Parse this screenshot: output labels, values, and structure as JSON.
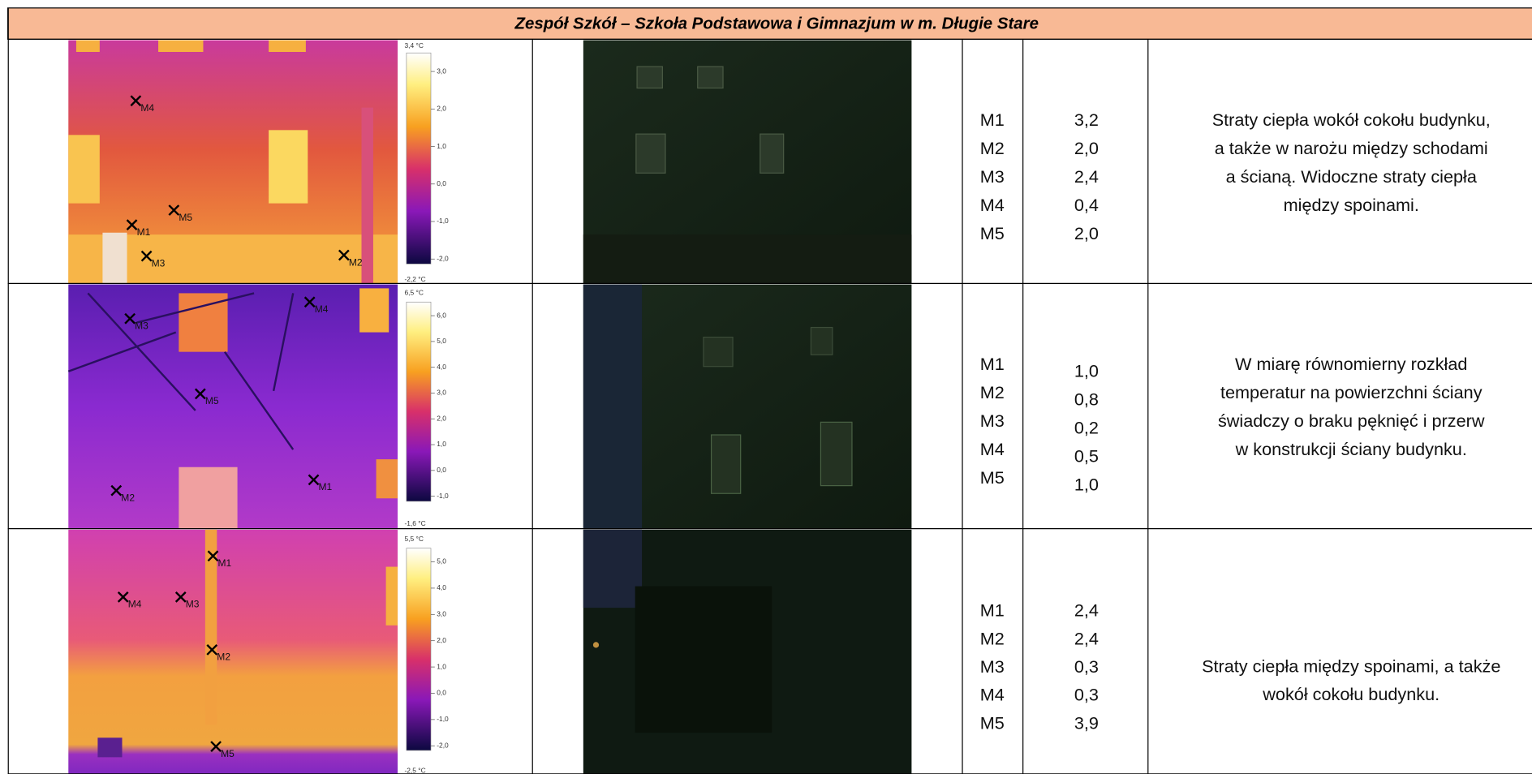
{
  "title": "Zespół Szkół – Szkoła Podstawowa i Gimnazjum w m. Długie Stare",
  "rows": [
    {
      "scale": {
        "max": "3,4 °C",
        "min": "-2,2 °C",
        "ticks": [
          "3,0",
          "2,0",
          "1,0",
          "0,0",
          "-1,0",
          "-2,0"
        ]
      },
      "points": [
        {
          "label": "M1",
          "value": "3,2"
        },
        {
          "label": "M2",
          "value": "2,0"
        },
        {
          "label": "M3",
          "value": "2,4"
        },
        {
          "label": "M4",
          "value": "0,4"
        },
        {
          "label": "M5",
          "value": "2,0"
        }
      ],
      "description": [
        "Straty ciepła wokół cokołu budynku,",
        "a także w narożu między schodami",
        "a ścianą. Widoczne straty ciepła",
        "między spoinami."
      ]
    },
    {
      "scale": {
        "max": "6,5 °C",
        "min": "-1,6 °C",
        "ticks": [
          "6,0",
          "5,0",
          "4,0",
          "3,0",
          "2,0",
          "1,0",
          "0,0",
          "-1,0"
        ]
      },
      "points": [
        {
          "label": "M1",
          "value": "1,0"
        },
        {
          "label": "M2",
          "value": "0,8"
        },
        {
          "label": "M3",
          "value": "0,2"
        },
        {
          "label": "M4",
          "value": "0,5"
        },
        {
          "label": "M5",
          "value": "1,0"
        }
      ],
      "description": [
        "W miarę równomierny rozkład",
        "temperatur na powierzchni ściany",
        "świadczy o braku pęknięć i przerw",
        "w konstrukcji ściany budynku."
      ]
    },
    {
      "scale": {
        "max": "5,5 °C",
        "min": "-2,5 °C",
        "ticks": [
          "5,0",
          "4,0",
          "3,0",
          "2,0",
          "1,0",
          "0,0",
          "-1,0",
          "-2,0"
        ]
      },
      "points": [
        {
          "label": "M1",
          "value": "2,4"
        },
        {
          "label": "M2",
          "value": "2,4"
        },
        {
          "label": "M3",
          "value": "0,3"
        },
        {
          "label": "M4",
          "value": "0,3"
        },
        {
          "label": "M5",
          "value": "3,9"
        }
      ],
      "description": [
        "Straty ciepła między spoinami, a także",
        "wokół cokołu budynku."
      ]
    }
  ]
}
